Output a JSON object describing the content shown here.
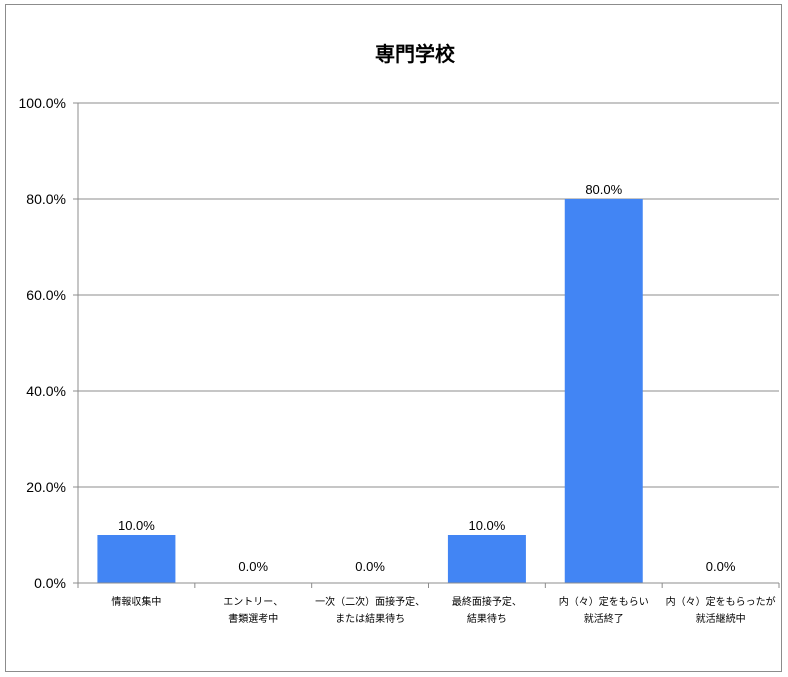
{
  "chart_data": {
    "type": "bar",
    "title": "専門学校",
    "categories": [
      [
        "情報収集中"
      ],
      [
        "エントリー、",
        "書類選考中"
      ],
      [
        "一次（二次）面接予定、",
        "または結果待ち"
      ],
      [
        "最終面接予定、",
        "結果待ち"
      ],
      [
        "内（々）定をもらい",
        "就活終了"
      ],
      [
        "内（々）定をもらったが",
        "就活継続中"
      ]
    ],
    "values": [
      10.0,
      0.0,
      0.0,
      10.0,
      80.0,
      0.0
    ],
    "data_labels": [
      "10.0%",
      "0.0%",
      "0.0%",
      "10.0%",
      "80.0%",
      "0.0%"
    ],
    "ylim": [
      0,
      100
    ],
    "yticks": [
      0,
      20,
      40,
      60,
      80,
      100
    ],
    "ytick_labels": [
      "0.0%",
      "20.0%",
      "40.0%",
      "60.0%",
      "80.0%",
      "100.0%"
    ],
    "grid": true,
    "legend": "none",
    "bar_color": "#4285f4"
  }
}
